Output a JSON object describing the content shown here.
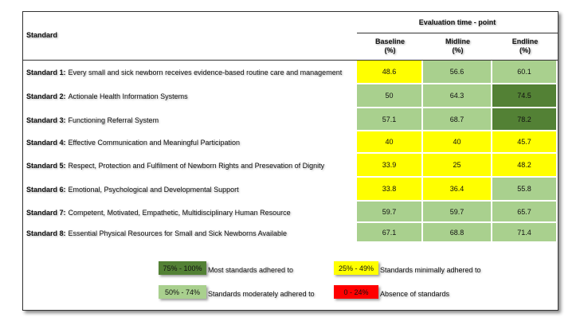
{
  "header": {
    "standard": "Standard",
    "group": "Evaluation time - point",
    "columns": [
      {
        "name": "Baseline",
        "unit": "(%)"
      },
      {
        "name": "Midline",
        "unit": "(%)"
      },
      {
        "name": "Endline",
        "unit": "(%)"
      }
    ]
  },
  "rows": [
    {
      "id": "Standard 1:",
      "text": "Every small and sick newborn receives evidence-based routine care and management",
      "values": [
        "48.6",
        "56.6",
        "60.1"
      ],
      "levels": [
        "minimal",
        "moderate",
        "moderate"
      ]
    },
    {
      "id": "Standard 2:",
      "text": "Actionale Health Information Systems",
      "values": [
        "50",
        "64.3",
        "74.5"
      ],
      "levels": [
        "moderate",
        "moderate",
        "most"
      ]
    },
    {
      "id": "Standard 3:",
      "text": "Functioning Referral System",
      "values": [
        "57.1",
        "68.7",
        "78.2"
      ],
      "levels": [
        "moderate",
        "moderate",
        "most"
      ]
    },
    {
      "id": "Standard 4:",
      "text": "Effective Communication and Meaningful Participation",
      "values": [
        "40",
        "40",
        "45.7"
      ],
      "levels": [
        "minimal",
        "minimal",
        "minimal"
      ]
    },
    {
      "id": "Standard 5:",
      "text": "Respect, Protection and Fulfilment of Newborn Rights and Presevation of Dignity",
      "values": [
        "33.9",
        "25",
        "48.2"
      ],
      "levels": [
        "minimal",
        "minimal",
        "minimal"
      ]
    },
    {
      "id": "Standard 6:",
      "text": "Emotional, Psychological and Developmental Support",
      "values": [
        "33.8",
        "36.4",
        "55.8"
      ],
      "levels": [
        "minimal",
        "minimal",
        "moderate"
      ]
    },
    {
      "id": "Standard 7:",
      "text": "Competent, Motivated, Empathetic, Multidisciplinary Human Resource",
      "values": [
        "59.7",
        "59.7",
        "65.7"
      ],
      "levels": [
        "moderate",
        "moderate",
        "moderate"
      ]
    },
    {
      "id": "Standard 8:",
      "text": "Essential Physical Resources for Small and Sick Newborns Available",
      "values": [
        "67.1",
        "68.8",
        "71.4"
      ],
      "levels": [
        "moderate",
        "moderate",
        "moderate"
      ]
    }
  ],
  "colors": {
    "most": "#538135",
    "moderate": "#a9d08e",
    "minimal": "#ffff00",
    "absent": "#ff0000"
  },
  "legend": [
    {
      "range": "75% - 100%",
      "label": "Most standards adhered to",
      "level": "most"
    },
    {
      "range": "50% - 74%",
      "label": "Standards moderately adhered to",
      "level": "moderate"
    },
    {
      "range": "25% - 49%",
      "label": "Standards minimally adhered to",
      "level": "minimal"
    },
    {
      "range": "0 - 24%",
      "label": "Absence of standards",
      "level": "absent"
    }
  ]
}
